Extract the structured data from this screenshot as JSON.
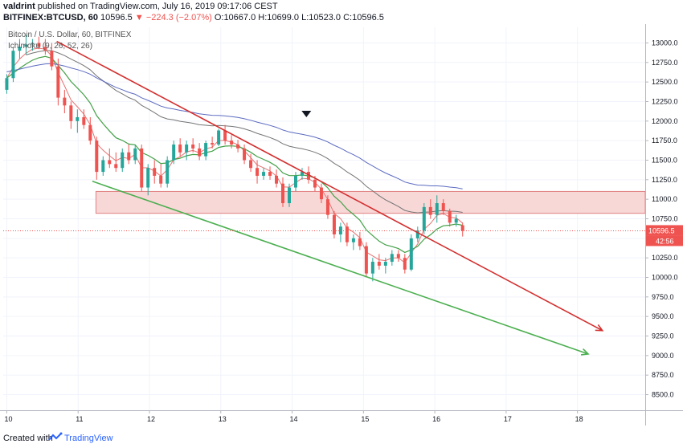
{
  "header": {
    "user": "valdrint",
    "published": "published on TradingView.com, July 16, 2019 09:17:06 CEST",
    "symbol": "BITFINEX:BTCUSD, 60",
    "price": "10596.5",
    "change": "−224.3 (−2.07%)",
    "open": "O:10667.0",
    "high": "H:10699.0",
    "low": "L:10523.0",
    "close": "C:10596.5"
  },
  "chart_title": "Bitcoin / U.S. Dollar, 60, BITFINEX",
  "indicator_title": "Ichimoku (9, 26, 52, 26)",
  "price_label": "10596.5",
  "countdown_label": "42:56",
  "footer": {
    "created_with": "Created with",
    "brand": "TradingView"
  },
  "colors": {
    "up": "#26a69a",
    "down": "#ef5350",
    "resistance": "#d32f2f",
    "support": "#4caf50",
    "zone": "#f8d7d7",
    "ema_fast": "#e57373",
    "ema_slow": "#43a047",
    "ma_long1": "#757575",
    "ma_long2": "#5c6bc0",
    "label_bg": "#ef5350"
  },
  "chart_data": {
    "type": "candlestick",
    "x_ticks": [
      "10",
      "11",
      "12",
      "13",
      "14",
      "15",
      "16",
      "17",
      "18"
    ],
    "y_ticks": [
      "13000.0",
      "12750.0",
      "12500.0",
      "12250.0",
      "12000.0",
      "11750.0",
      "11500.0",
      "11250.0",
      "11000.0",
      "10750.0",
      "10500.0",
      "10250.0",
      "10000.0",
      "9750.0",
      "9500.0",
      "9250.0",
      "9000.0",
      "8750.0",
      "8500.0"
    ],
    "ylim": [
      8300,
      13200
    ],
    "xlim": [
      9.95,
      18.95
    ],
    "last_price": 10596.5,
    "zone": {
      "low": 10820,
      "high": 11100,
      "x_start": 11.25,
      "x_end": 18.95
    },
    "resistance_line": {
      "x1": 10.7,
      "y1": 13020,
      "x2": 18.35,
      "y2": 9320
    },
    "support_line": {
      "x1": 11.2,
      "y1": 11230,
      "x2": 18.15,
      "y2": 9020
    },
    "marker": {
      "x": 14.2,
      "y": 12090
    },
    "candles": [
      [
        10.0,
        12400,
        12600,
        12350,
        12550
      ],
      [
        10.09,
        12550,
        12950,
        12500,
        12900
      ],
      [
        10.18,
        12900,
        13050,
        12800,
        12950
      ],
      [
        10.27,
        12950,
        13100,
        12850,
        12980
      ],
      [
        10.36,
        12980,
        13050,
        12900,
        13000
      ],
      [
        10.45,
        13000,
        13080,
        12920,
        12950
      ],
      [
        10.54,
        12950,
        13050,
        12850,
        12900
      ],
      [
        10.63,
        12900,
        13000,
        12650,
        12700
      ],
      [
        10.72,
        12700,
        12800,
        12200,
        12300
      ],
      [
        10.81,
        12300,
        12400,
        12100,
        12200
      ],
      [
        10.9,
        12200,
        12250,
        11900,
        12000
      ],
      [
        10.99,
        12000,
        12150,
        11850,
        12050
      ],
      [
        11.08,
        12050,
        12150,
        11900,
        11950
      ],
      [
        11.17,
        11950,
        12050,
        11700,
        11750
      ],
      [
        11.26,
        11750,
        11800,
        11250,
        11350
      ],
      [
        11.35,
        11350,
        11550,
        11300,
        11500
      ],
      [
        11.44,
        11500,
        11650,
        11400,
        11450
      ],
      [
        11.53,
        11450,
        11600,
        11350,
        11400
      ],
      [
        11.62,
        11400,
        11650,
        11350,
        11600
      ],
      [
        11.71,
        11600,
        11700,
        11450,
        11500
      ],
      [
        11.8,
        11500,
        11700,
        11450,
        11650
      ],
      [
        11.89,
        11650,
        11700,
        11100,
        11150
      ],
      [
        11.98,
        11150,
        11450,
        11050,
        11400
      ],
      [
        12.07,
        11400,
        11500,
        11200,
        11300
      ],
      [
        12.16,
        11300,
        11450,
        11150,
        11200
      ],
      [
        12.25,
        11200,
        11550,
        11150,
        11500
      ],
      [
        12.34,
        11500,
        11750,
        11450,
        11700
      ],
      [
        12.43,
        11700,
        11780,
        11550,
        11600
      ],
      [
        12.52,
        11600,
        11750,
        11500,
        11700
      ],
      [
        12.61,
        11700,
        11780,
        11600,
        11650
      ],
      [
        12.7,
        11650,
        11720,
        11500,
        11550
      ],
      [
        12.79,
        11550,
        11750,
        11500,
        11720
      ],
      [
        12.88,
        11720,
        11800,
        11650,
        11700
      ],
      [
        12.97,
        11700,
        11900,
        11680,
        11880
      ],
      [
        13.06,
        11880,
        11950,
        11700,
        11750
      ],
      [
        13.15,
        11750,
        11820,
        11650,
        11700
      ],
      [
        13.24,
        11700,
        11760,
        11600,
        11650
      ],
      [
        13.33,
        11650,
        11700,
        11450,
        11500
      ],
      [
        13.42,
        11500,
        11580,
        11350,
        11400
      ],
      [
        13.51,
        11400,
        11500,
        11200,
        11300
      ],
      [
        13.6,
        11300,
        11400,
        11250,
        11350
      ],
      [
        13.69,
        11350,
        11420,
        11250,
        11300
      ],
      [
        13.78,
        11300,
        11380,
        11150,
        11200
      ],
      [
        13.87,
        11200,
        11280,
        10900,
        10950
      ],
      [
        13.96,
        10950,
        11200,
        10900,
        11150
      ],
      [
        14.05,
        11150,
        11350,
        11100,
        11300
      ],
      [
        14.14,
        11300,
        11400,
        11250,
        11350
      ],
      [
        14.23,
        11350,
        11420,
        11200,
        11250
      ],
      [
        14.32,
        11250,
        11300,
        11100,
        11150
      ],
      [
        14.41,
        11150,
        11200,
        10950,
        11000
      ],
      [
        14.5,
        11000,
        11050,
        10750,
        10800
      ],
      [
        14.59,
        10800,
        10850,
        10500,
        10550
      ],
      [
        14.68,
        10550,
        10700,
        10450,
        10650
      ],
      [
        14.77,
        10650,
        10700,
        10400,
        10450
      ],
      [
        14.86,
        10450,
        10550,
        10350,
        10500
      ],
      [
        14.95,
        10500,
        10580,
        10350,
        10400
      ],
      [
        15.04,
        10400,
        10450,
        10000,
        10050
      ],
      [
        15.13,
        10050,
        10250,
        9950,
        10200
      ],
      [
        15.22,
        10200,
        10300,
        10100,
        10150
      ],
      [
        15.31,
        10150,
        10250,
        10050,
        10200
      ],
      [
        15.4,
        10200,
        10350,
        10150,
        10300
      ],
      [
        15.49,
        10300,
        10350,
        10200,
        10250
      ],
      [
        15.58,
        10250,
        10300,
        10050,
        10100
      ],
      [
        15.67,
        10100,
        10550,
        10080,
        10500
      ],
      [
        15.76,
        10500,
        10650,
        10450,
        10600
      ],
      [
        15.85,
        10600,
        10950,
        10550,
        10900
      ],
      [
        15.94,
        10900,
        11000,
        10750,
        10800
      ],
      [
        16.03,
        10800,
        11050,
        10700,
        10950
      ],
      [
        16.12,
        10950,
        11000,
        10800,
        10850
      ],
      [
        16.21,
        10850,
        10880,
        10650,
        10700
      ],
      [
        16.3,
        10700,
        10800,
        10650,
        10750
      ],
      [
        16.39,
        10667,
        10699,
        10523,
        10596.5
      ]
    ]
  }
}
